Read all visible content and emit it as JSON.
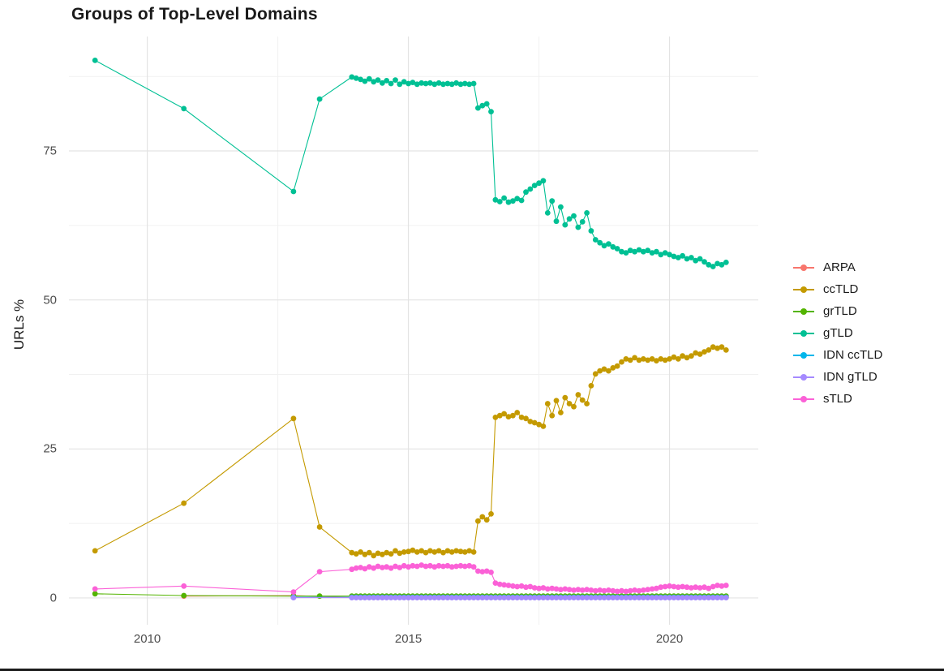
{
  "chart_data": {
    "type": "line",
    "title": "Groups of Top-Level Domains",
    "xlabel": "",
    "ylabel": "URLs %",
    "grid": true,
    "legend_position": "right",
    "background": "#FFFFFF",
    "x_ticks": [
      2010,
      2015,
      2020
    ],
    "x_minor": [
      2012.5,
      2017.5
    ],
    "y_ticks": [
      0,
      25,
      50,
      75
    ],
    "y_minor": [
      12.5,
      37.5,
      62.5,
      87.5
    ],
    "x_domain": [
      2008.5,
      2021.7
    ],
    "y_domain": [
      -4.5,
      94.2
    ],
    "series": [
      {
        "name": "ARPA",
        "color": "#F8766D",
        "points": [
          [
            2010.7,
            0.3
          ],
          [
            2012.8,
            0.4
          ]
        ],
        "dense": {
          "x_start": 2013.917,
          "x_step": 0.08333,
          "const": 0.1,
          "count": 87
        }
      },
      {
        "name": "ccTLD",
        "color": "#C49A00",
        "points": [
          [
            2009.0,
            7.9
          ],
          [
            2010.7,
            15.9
          ],
          [
            2012.8,
            30.1
          ],
          [
            2013.3,
            11.9
          ]
        ],
        "dense": {
          "x_start": 2013.917,
          "x_step": 0.08333,
          "values": [
            7.6,
            7.4,
            7.7,
            7.3,
            7.6,
            7.1,
            7.5,
            7.3,
            7.6,
            7.4,
            7.9,
            7.5,
            7.7,
            7.8,
            8.0,
            7.7,
            7.9,
            7.6,
            7.9,
            7.7,
            7.9,
            7.6,
            7.9,
            7.7,
            7.9,
            7.8,
            7.7,
            7.9,
            7.7,
            12.9,
            13.6,
            13.1,
            14.1,
            30.3,
            30.6,
            30.9,
            30.4,
            30.6,
            31.1,
            30.3,
            30.1,
            29.6,
            29.4,
            29.1,
            28.8,
            32.6,
            30.6,
            33.1,
            31.1,
            33.6,
            32.6,
            32.1,
            34.1,
            33.2,
            32.6,
            35.6,
            37.6,
            38.1,
            38.4,
            38.1,
            38.6,
            38.9,
            39.6,
            40.1,
            39.9,
            40.3,
            39.9,
            40.1,
            39.9,
            40.1,
            39.8,
            40.1,
            39.9,
            40.1,
            40.4,
            40.1,
            40.6,
            40.3,
            40.6,
            41.1,
            40.9,
            41.3,
            41.6,
            42.1,
            41.9,
            42.1,
            41.6
          ]
        }
      },
      {
        "name": "grTLD",
        "color": "#53B400",
        "points": [
          [
            2009.0,
            0.7
          ],
          [
            2010.7,
            0.4
          ],
          [
            2012.8,
            0.3
          ],
          [
            2013.3,
            0.3
          ]
        ],
        "dense": {
          "x_start": 2013.917,
          "x_step": 0.08333,
          "const": 0.3,
          "count": 87
        }
      },
      {
        "name": "gTLD",
        "color": "#00C094",
        "points": [
          [
            2009.0,
            90.2
          ],
          [
            2010.7,
            82.1
          ],
          [
            2012.8,
            68.2
          ],
          [
            2013.3,
            83.7
          ]
        ],
        "dense": {
          "x_start": 2013.917,
          "x_step": 0.08333,
          "values": [
            87.4,
            87.2,
            87.0,
            86.7,
            87.1,
            86.6,
            86.9,
            86.4,
            86.8,
            86.3,
            86.9,
            86.2,
            86.6,
            86.3,
            86.5,
            86.2,
            86.4,
            86.3,
            86.4,
            86.2,
            86.4,
            86.2,
            86.3,
            86.2,
            86.4,
            86.2,
            86.3,
            86.2,
            86.3,
            82.2,
            82.6,
            82.9,
            81.6,
            66.8,
            66.5,
            67.1,
            66.4,
            66.6,
            67.0,
            66.7,
            68.1,
            68.6,
            69.2,
            69.6,
            70.0,
            64.6,
            66.6,
            63.2,
            65.6,
            62.6,
            63.6,
            64.1,
            62.2,
            63.1,
            64.6,
            61.6,
            60.1,
            59.6,
            59.1,
            59.4,
            58.9,
            58.6,
            58.1,
            57.9,
            58.3,
            58.1,
            58.4,
            58.1,
            58.3,
            57.9,
            58.1,
            57.6,
            57.9,
            57.6,
            57.3,
            57.1,
            57.4,
            56.9,
            57.1,
            56.6,
            56.9,
            56.4,
            55.9,
            55.6,
            56.1,
            55.9,
            56.3
          ]
        }
      },
      {
        "name": "IDN ccTLD",
        "color": "#00B6EB",
        "points": [
          [
            2012.8,
            0.1
          ]
        ],
        "dense": {
          "x_start": 2013.917,
          "x_step": 0.08333,
          "const": 0.1,
          "count": 87
        }
      },
      {
        "name": "IDN gTLD",
        "color": "#A58AFF",
        "points": [
          [
            2012.8,
            0.05
          ]
        ],
        "dense": {
          "x_start": 2013.917,
          "x_step": 0.08333,
          "const": 0.05,
          "count": 87
        }
      },
      {
        "name": "sTLD",
        "color": "#FB61D7",
        "points": [
          [
            2009.0,
            1.5
          ],
          [
            2010.7,
            2.0
          ],
          [
            2012.8,
            1.0
          ],
          [
            2013.3,
            4.4
          ]
        ],
        "dense": {
          "x_start": 2013.917,
          "x_step": 0.08333,
          "values": [
            4.8,
            5.0,
            5.1,
            4.9,
            5.2,
            5.0,
            5.3,
            5.1,
            5.2,
            5.0,
            5.3,
            5.1,
            5.4,
            5.2,
            5.4,
            5.3,
            5.5,
            5.3,
            5.4,
            5.2,
            5.4,
            5.3,
            5.4,
            5.2,
            5.3,
            5.4,
            5.3,
            5.4,
            5.2,
            4.5,
            4.4,
            4.5,
            4.3,
            2.5,
            2.3,
            2.2,
            2.1,
            2.0,
            1.9,
            2.0,
            1.8,
            1.9,
            1.7,
            1.6,
            1.7,
            1.5,
            1.6,
            1.5,
            1.4,
            1.5,
            1.4,
            1.3,
            1.4,
            1.3,
            1.4,
            1.3,
            1.2,
            1.3,
            1.2,
            1.3,
            1.2,
            1.1,
            1.2,
            1.1,
            1.2,
            1.3,
            1.2,
            1.3,
            1.4,
            1.5,
            1.6,
            1.8,
            1.9,
            2.0,
            1.9,
            1.8,
            1.9,
            1.8,
            1.7,
            1.8,
            1.7,
            1.8,
            1.6,
            1.9,
            2.1,
            2.0,
            2.1
          ]
        }
      }
    ]
  }
}
